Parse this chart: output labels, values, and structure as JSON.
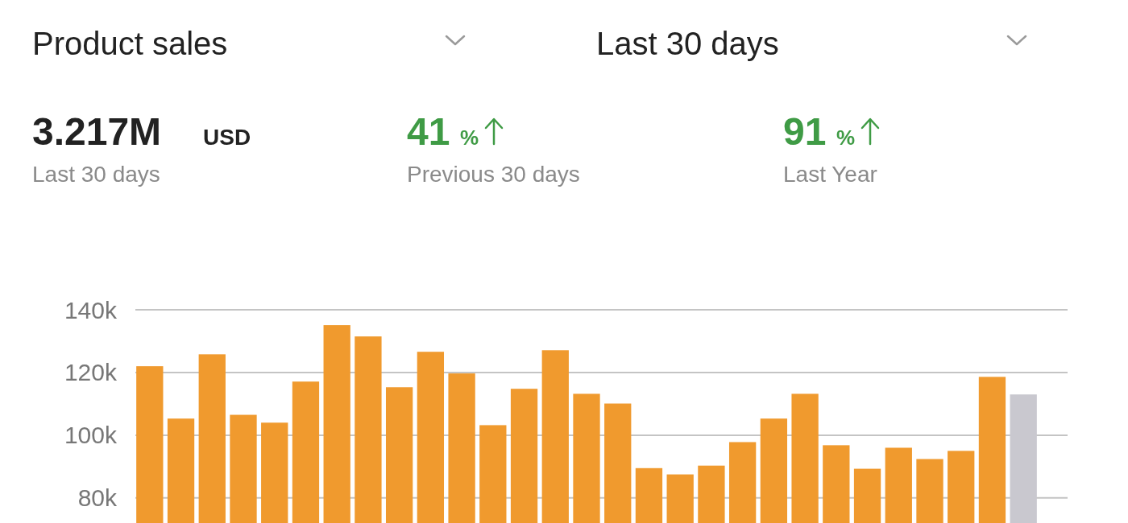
{
  "chart_data": {
    "type": "bar",
    "title": "Product sales",
    "subtitle": "Last 30 days",
    "annotations": [
      "3.217M",
      "USD",
      "Last 30 days",
      "41",
      "%",
      "Previous 30 days",
      "91",
      "%",
      "Last Year"
    ],
    "categories": [
      null,
      null,
      null,
      null,
      null,
      null,
      null,
      null,
      null,
      null,
      null,
      null,
      null,
      null,
      null,
      null,
      null,
      null,
      null,
      null,
      null,
      null,
      null,
      null,
      null,
      null,
      null,
      null,
      null
    ],
    "values": [
      122000,
      105300,
      125800,
      106500,
      104000,
      117100,
      135100,
      131500,
      115300,
      126600,
      119700,
      103200,
      114800,
      127100,
      113200,
      110100,
      89500,
      87500,
      90300,
      97800,
      105300,
      113200,
      96800,
      89300,
      96000,
      92400,
      95000,
      118600,
      113000
    ],
    "colors": [
      "#f09a2e",
      "#f09a2e",
      "#f09a2e",
      "#f09a2e",
      "#f09a2e",
      "#f09a2e",
      "#f09a2e",
      "#f09a2e",
      "#f09a2e",
      "#f09a2e",
      "#f09a2e",
      "#f09a2e",
      "#f09a2e",
      "#f09a2e",
      "#f09a2e",
      "#f09a2e",
      "#f09a2e",
      "#f09a2e",
      "#f09a2e",
      "#f09a2e",
      "#f09a2e",
      "#f09a2e",
      "#f09a2e",
      "#f09a2e",
      "#f09a2e",
      "#f09a2e",
      "#f09a2e",
      "#f09a2e",
      "#c9c8cf"
    ],
    "ylim": [
      72000,
      140000
    ],
    "yticks": [
      {
        "value": 80000,
        "label": "80k"
      },
      {
        "value": 100000,
        "label": "100k"
      },
      {
        "value": 120000,
        "label": "120k"
      },
      {
        "value": 140000,
        "label": "140k"
      }
    ],
    "grid": true
  }
}
